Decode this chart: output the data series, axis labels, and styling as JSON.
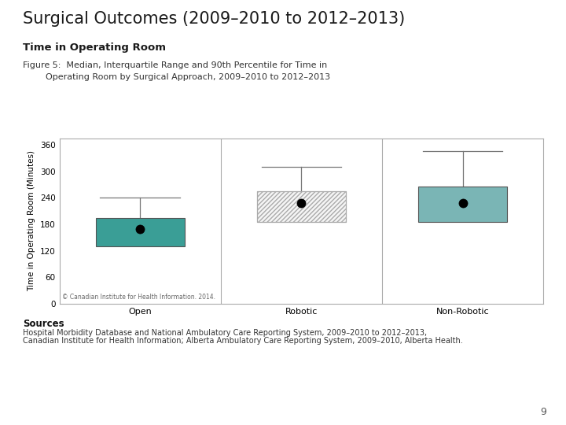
{
  "title": "Surgical Outcomes (2009–2010 to 2012–2013)",
  "subtitle": "Time in Operating Room",
  "figure_caption_line1": "Figure 5:  Median, Interquartile Range and 90th Percentile for Time in",
  "figure_caption_line2": "Operating Room by Surgical Approach, 2009–2010 to 2012–2013",
  "categories": [
    "Open",
    "Robotic",
    "Non-Robotic"
  ],
  "medians": [
    170,
    228,
    228
  ],
  "q1": [
    130,
    185,
    185
  ],
  "q3": [
    195,
    255,
    265
  ],
  "p90": [
    240,
    310,
    345
  ],
  "colors": [
    "#3a9e96",
    "#efefef",
    "#7ab5b5"
  ],
  "ylabel": "Time in Operating Room (Minutes)",
  "ylim": [
    0,
    375
  ],
  "yticks": [
    0,
    60,
    120,
    180,
    240,
    300,
    360
  ],
  "copyright": "© Canadian Institute for Health Information. 2014.",
  "sources_title": "Sources",
  "sources_line1": "Hospital Morbidity Database and National Ambulatory Care Reporting System, 2009–2010 to 2012–2013,",
  "sources_line2": "Canadian Institute for Health Information; Alberta Ambulatory Care Reporting System, 2009–2010, Alberta Health.",
  "page_number": "9",
  "logo_color": "#3a9e96",
  "background_color": "#ffffff",
  "box_width": 0.55
}
